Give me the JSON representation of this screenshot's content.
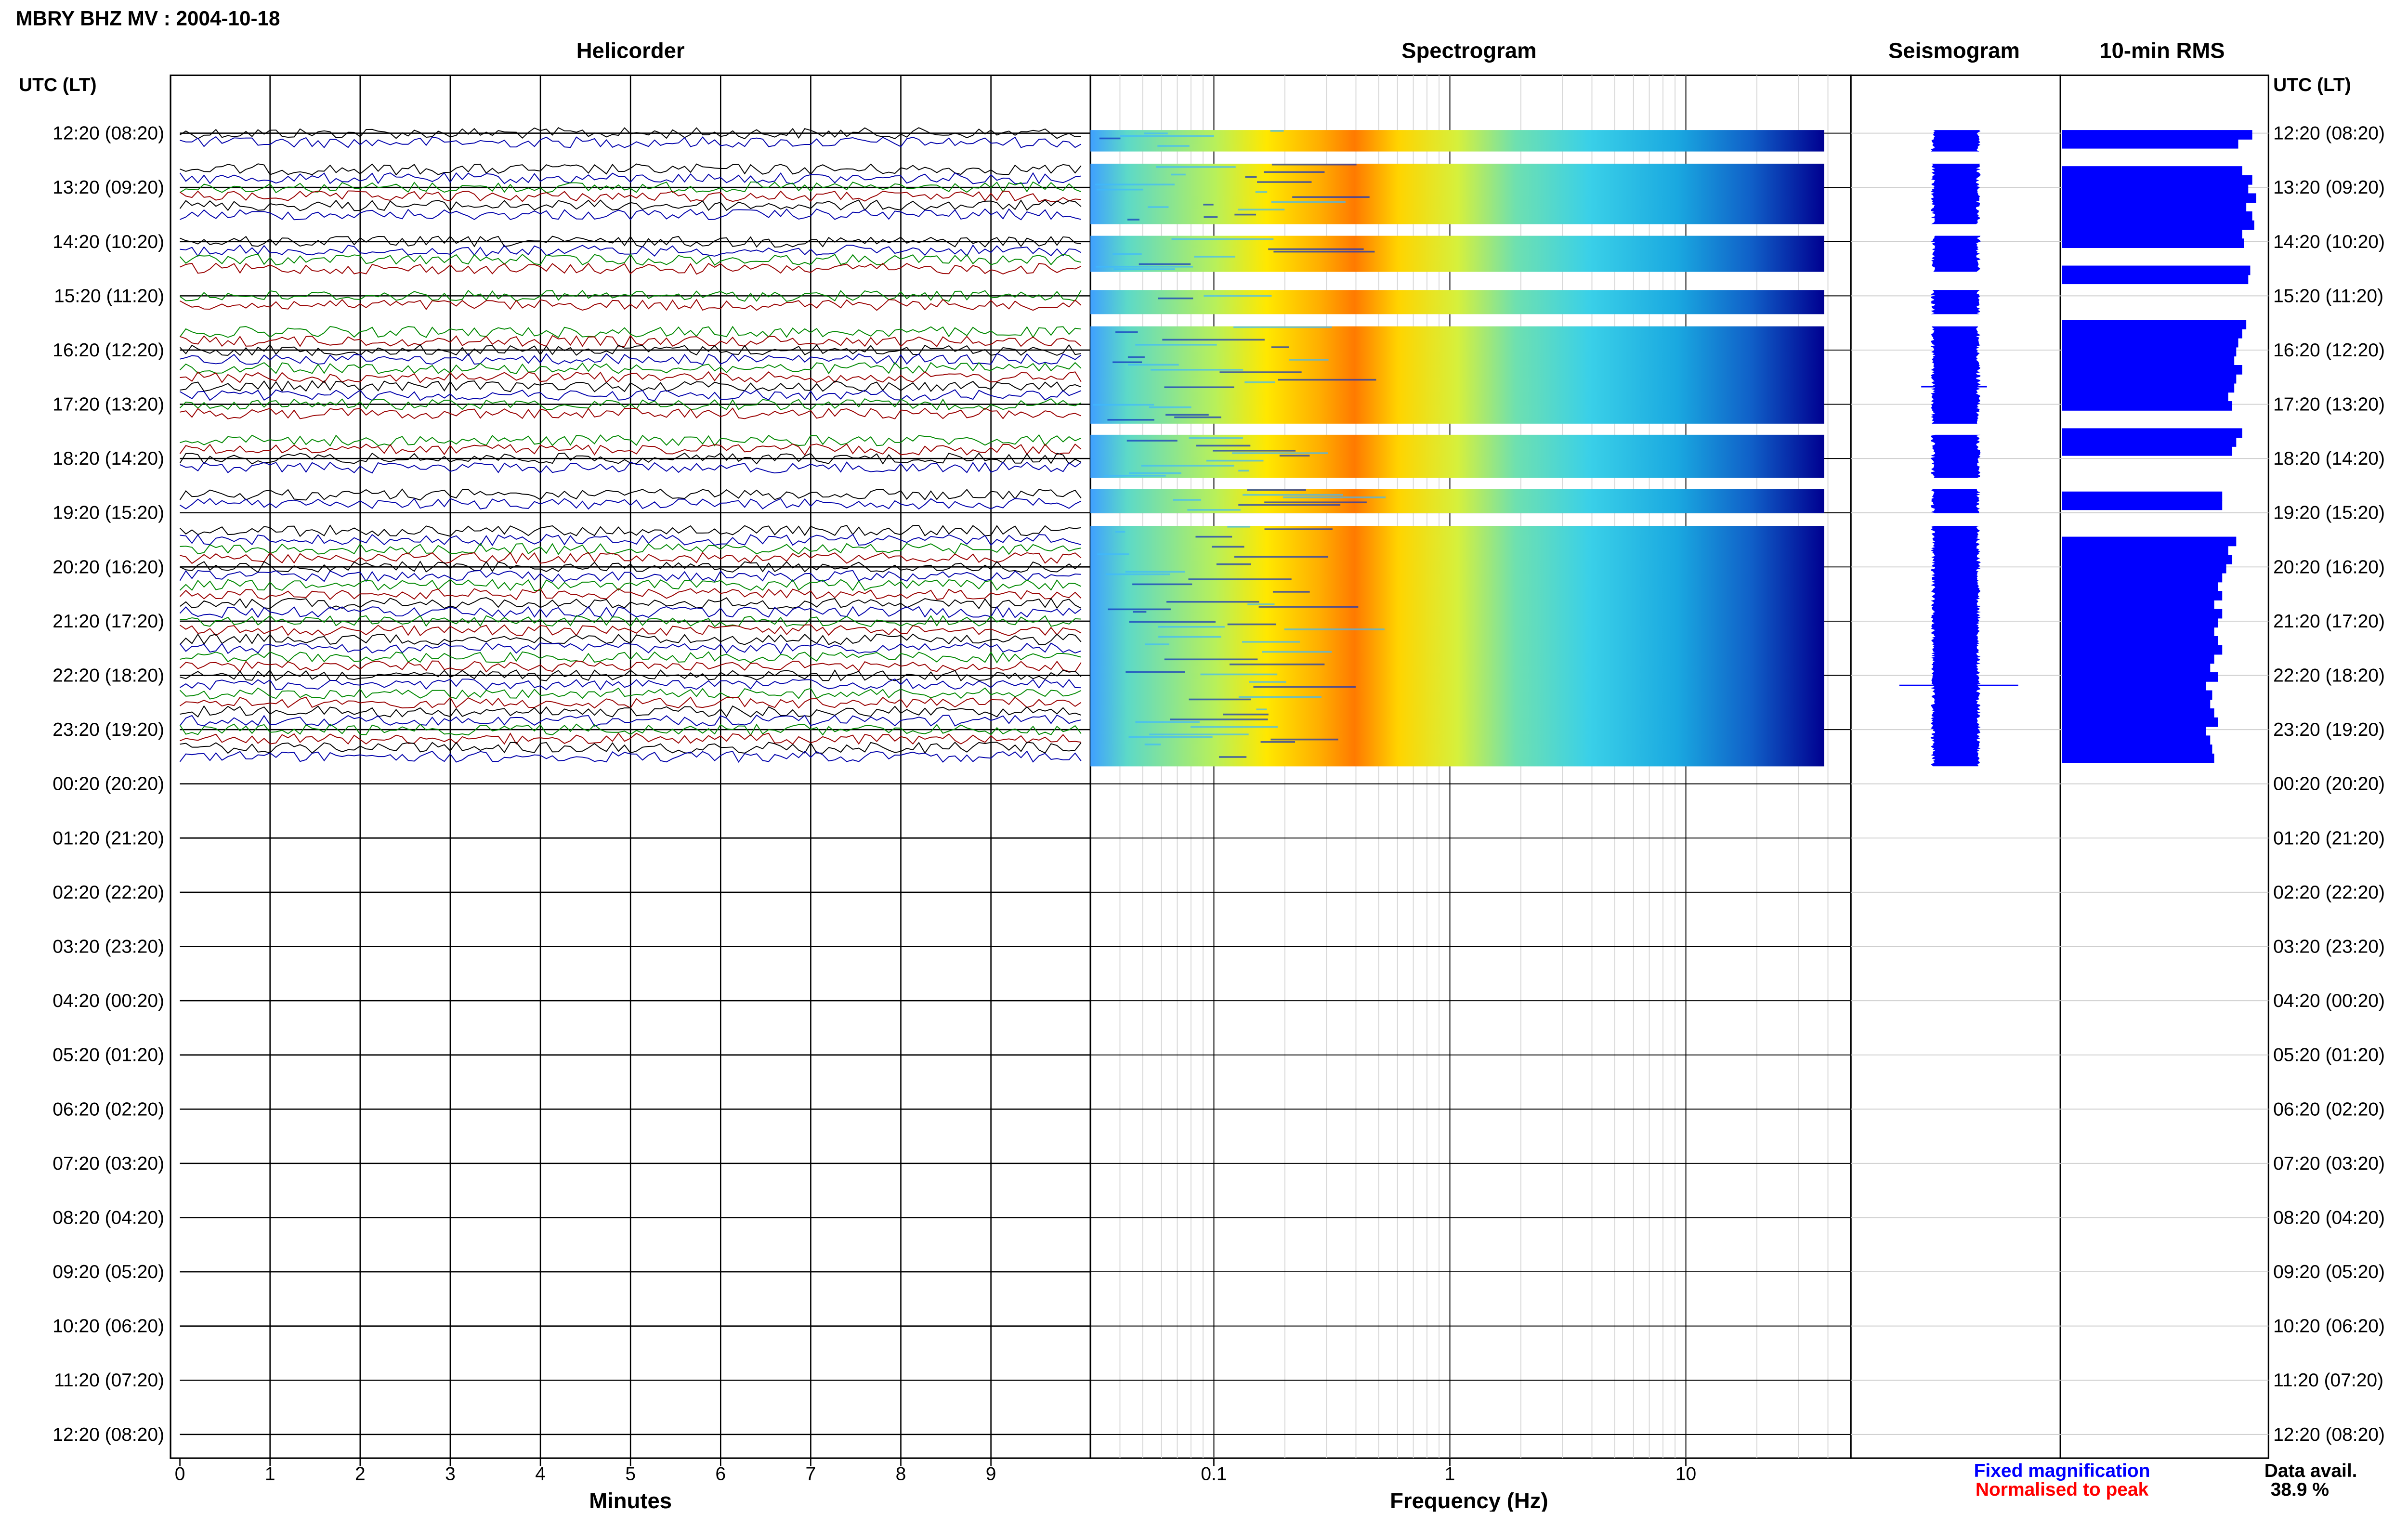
{
  "header": {
    "title": "MBRY BHZ MV : 2004-10-18"
  },
  "panels": {
    "helicorder": "Helicorder",
    "spectrogram": "Spectrogram",
    "seismogram": "Seismogram",
    "rms": "10-min RMS"
  },
  "axis_header_left": "UTC (LT)",
  "axis_header_right": "UTC (LT)",
  "time_labels": [
    "12:20 (08:20)",
    "13:20 (09:20)",
    "14:20 (10:20)",
    "15:20 (11:20)",
    "16:20 (12:20)",
    "17:20 (13:20)",
    "18:20 (14:20)",
    "19:20 (15:20)",
    "20:20 (16:20)",
    "21:20 (17:20)",
    "22:20 (18:20)",
    "23:20 (19:20)",
    "00:20 (20:20)",
    "01:20 (21:20)",
    "02:20 (22:20)",
    "03:20 (23:20)",
    "04:20 (00:20)",
    "05:20 (01:20)",
    "06:20 (02:20)",
    "07:20 (03:20)",
    "08:20 (04:20)",
    "09:20 (05:20)",
    "10:20 (06:20)",
    "11:20 (07:20)",
    "12:20 (08:20)"
  ],
  "legend": {
    "fixed": "Fixed magnification",
    "normalised": "Normalised to peak",
    "fixed_color": "#0000ff",
    "normalised_color": "#ff0000"
  },
  "availability": {
    "label": "Data avail.",
    "value": "38.9 %"
  },
  "colors": {
    "trace_cycle": [
      "#000000",
      "#0000aa",
      "#008800",
      "#990000"
    ],
    "seismogram": "#0000ff",
    "rms": "#0000ff",
    "spectrogram_low": "#000080",
    "spectrogram_high": "#ff2000"
  },
  "chart_data": [
    {
      "type": "line",
      "title": "Helicorder",
      "xlabel": "Minutes",
      "x_ticks": [
        "0",
        "1",
        "2",
        "3",
        "4",
        "5",
        "6",
        "7",
        "8",
        "9"
      ],
      "xlim": [
        0,
        10
      ],
      "hour_rows": 25,
      "traces_per_hour": 6,
      "data_hours": [
        0,
        1,
        2,
        3,
        4,
        5,
        6,
        7,
        8,
        9,
        10,
        11
      ],
      "data_segments": [
        {
          "start_hour": 0.0,
          "end_hour": 0.28
        },
        {
          "start_hour": 0.62,
          "end_hour": 1.62
        },
        {
          "start_hour": 1.95,
          "end_hour": 2.5
        },
        {
          "start_hour": 2.95,
          "end_hour": 3.28
        },
        {
          "start_hour": 3.62,
          "end_hour": 5.3
        },
        {
          "start_hour": 5.62,
          "end_hour": 6.3
        },
        {
          "start_hour": 6.62,
          "end_hour": 6.95
        },
        {
          "start_hour": 7.3,
          "end_hour": 11.62
        }
      ]
    },
    {
      "type": "heatmap",
      "title": "Spectrogram",
      "xlabel": "Frequency (Hz)",
      "x_scale": "log",
      "x_ticks": [
        "0.1",
        "1",
        "10"
      ],
      "xlim": [
        0.03,
        50
      ],
      "peak_frequency_hz": 0.45,
      "data_segments": [
        {
          "start_hour": 0.0,
          "end_hour": 0.28
        },
        {
          "start_hour": 0.62,
          "end_hour": 1.62
        },
        {
          "start_hour": 1.95,
          "end_hour": 2.5
        },
        {
          "start_hour": 2.95,
          "end_hour": 3.28
        },
        {
          "start_hour": 3.62,
          "end_hour": 5.3
        },
        {
          "start_hour": 5.62,
          "end_hour": 6.3
        },
        {
          "start_hour": 6.62,
          "end_hour": 6.95
        },
        {
          "start_hour": 7.3,
          "end_hour": 11.62
        }
      ]
    },
    {
      "type": "line",
      "title": "Seismogram",
      "data_segments": [
        {
          "start_hour": 0.0,
          "end_hour": 0.28
        },
        {
          "start_hour": 0.62,
          "end_hour": 1.62
        },
        {
          "start_hour": 1.95,
          "end_hour": 2.5
        },
        {
          "start_hour": 2.95,
          "end_hour": 3.28
        },
        {
          "start_hour": 3.62,
          "end_hour": 5.3
        },
        {
          "start_hour": 5.62,
          "end_hour": 6.3
        },
        {
          "start_hour": 6.62,
          "end_hour": 6.95
        },
        {
          "start_hour": 7.3,
          "end_hour": 11.62
        }
      ]
    },
    {
      "type": "bar",
      "title": "10-min RMS",
      "orientation": "horizontal",
      "bin_minutes": 10,
      "values": [
        0.95,
        0.88,
        null,
        null,
        0.9,
        0.95,
        0.93,
        0.97,
        0.92,
        0.95,
        0.96,
        0.9,
        0.91,
        null,
        null,
        0.94,
        0.93,
        null,
        null,
        null,
        null,
        0.92,
        0.9,
        0.88,
        0.87,
        0.86,
        0.9,
        0.87,
        0.86,
        0.83,
        0.85,
        null,
        null,
        0.9,
        0.87,
        0.85,
        null,
        null,
        null,
        null,
        0.8,
        0.8,
        null,
        null,
        null,
        0.87,
        0.83,
        0.85,
        0.82,
        0.8,
        0.78,
        0.8,
        0.76,
        0.8,
        0.78,
        0.76,
        0.78,
        0.8,
        0.76,
        0.74,
        0.78,
        0.72,
        0.75,
        0.74,
        0.76,
        0.78,
        0.72,
        0.74,
        0.75,
        0.76
      ]
    }
  ]
}
